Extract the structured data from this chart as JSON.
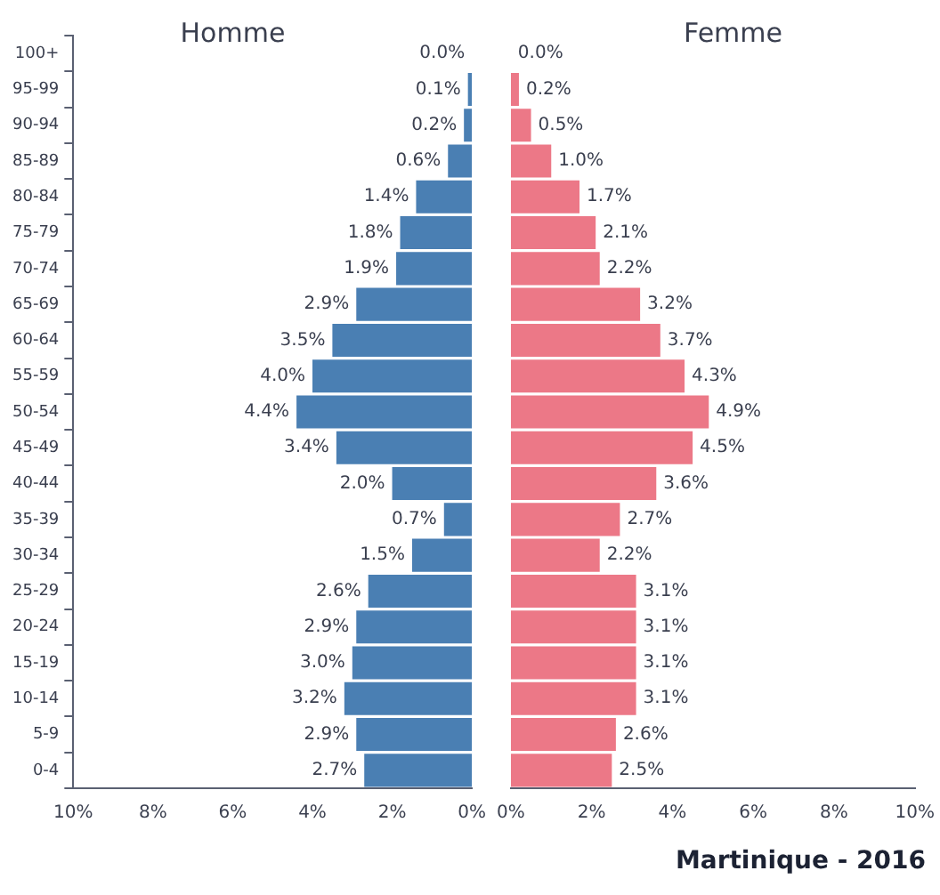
{
  "chart_data": [
    {
      "type": "bar",
      "orientation": "horizontal",
      "title": "Homme",
      "categories": [
        "100+",
        "95-99",
        "90-94",
        "85-89",
        "80-84",
        "75-79",
        "70-74",
        "65-69",
        "60-64",
        "55-59",
        "50-54",
        "45-49",
        "40-44",
        "35-39",
        "30-34",
        "25-29",
        "20-24",
        "15-19",
        "10-14",
        "5-9",
        "0-4"
      ],
      "series": [
        {
          "color": "#4a7fb3",
          "values": [
            0.0,
            0.1,
            0.2,
            0.6,
            1.4,
            1.8,
            1.9,
            2.9,
            3.5,
            4.0,
            4.4,
            3.4,
            2.0,
            0.7,
            1.5,
            2.6,
            2.9,
            3.0,
            3.2,
            2.9,
            2.7
          ],
          "value_labels": [
            "0.0%",
            "0.1%",
            "0.2%",
            "0.6%",
            "1.4%",
            "1.8%",
            "1.9%",
            "2.9%",
            "3.5%",
            "4.0%",
            "4.4%",
            "3.4%",
            "2.0%",
            "0.7%",
            "1.5%",
            "2.6%",
            "2.9%",
            "3.0%",
            "3.2%",
            "2.9%",
            "2.7%"
          ]
        }
      ],
      "xlim": [
        10,
        0
      ],
      "xticks": [
        {
          "value": 10,
          "label": "10%"
        },
        {
          "value": 8,
          "label": "8%"
        },
        {
          "value": 6,
          "label": "6%"
        },
        {
          "value": 4,
          "label": "4%"
        },
        {
          "value": 2,
          "label": "2%"
        },
        {
          "value": 0,
          "label": "0%"
        }
      ],
      "grid": false,
      "legend": false
    },
    {
      "type": "bar",
      "orientation": "horizontal",
      "title": "Femme",
      "categories": [
        null,
        null,
        null,
        null,
        null,
        null,
        null,
        null,
        null,
        null,
        null,
        null,
        null,
        null,
        null,
        null,
        null,
        null,
        null,
        null,
        null
      ],
      "series": [
        {
          "color": "#ec7887",
          "values": [
            0.0,
            0.2,
            0.5,
            1.0,
            1.7,
            2.1,
            2.2,
            3.2,
            3.7,
            4.3,
            4.9,
            4.5,
            3.6,
            2.7,
            2.2,
            3.1,
            3.1,
            3.1,
            3.1,
            2.6,
            2.5
          ],
          "value_labels": [
            "0.0%",
            "0.2%",
            "0.5%",
            "1.0%",
            "1.7%",
            "2.1%",
            "2.2%",
            "3.2%",
            "3.7%",
            "4.3%",
            "4.9%",
            "4.5%",
            "3.6%",
            "2.7%",
            "2.2%",
            "3.1%",
            "3.1%",
            "3.1%",
            "3.1%",
            "2.6%",
            "2.5%"
          ]
        }
      ],
      "xlim": [
        0,
        10
      ],
      "xticks": [
        {
          "value": 0,
          "label": "0%"
        },
        {
          "value": 2,
          "label": "2%"
        },
        {
          "value": 4,
          "label": "4%"
        },
        {
          "value": 6,
          "label": "6%"
        },
        {
          "value": 8,
          "label": "8%"
        },
        {
          "value": 10,
          "label": "10%"
        }
      ],
      "grid": false,
      "legend": false,
      "tick_labels": "x",
      "annotations": [
        "Martinique - 2016"
      ]
    }
  ]
}
